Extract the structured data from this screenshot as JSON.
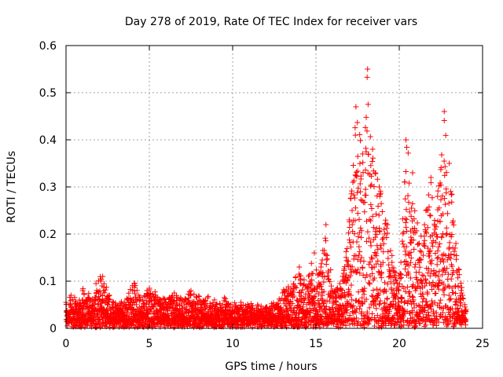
{
  "chart_data": {
    "type": "scatter",
    "title": "Day 278 of 2019, Rate Of TEC Index for receiver vars",
    "xlabel": "GPS time / hours",
    "ylabel": "ROTI / TECUs",
    "xlim": [
      0,
      25
    ],
    "ylim": [
      0,
      0.6
    ],
    "xticks": [
      0,
      5,
      10,
      15,
      20,
      25
    ],
    "yticks": [
      0,
      0.1,
      0.2,
      0.3,
      0.4,
      0.5,
      0.6
    ],
    "xtick_labels": [
      "0",
      "5",
      "10",
      "15",
      "20",
      "25"
    ],
    "ytick_labels": [
      "0",
      "0.1",
      "0.2",
      "0.3",
      "0.4",
      "0.5",
      "0.6"
    ],
    "grid": true,
    "marker": "+",
    "color": "#ff0000",
    "series": [
      {
        "name": "ROTI",
        "envelope": [
          {
            "x": 0.0,
            "y": 0.055
          },
          {
            "x": 0.3,
            "y": 0.07
          },
          {
            "x": 0.8,
            "y": 0.06
          },
          {
            "x": 1.0,
            "y": 0.08
          },
          {
            "x": 1.5,
            "y": 0.06
          },
          {
            "x": 1.8,
            "y": 0.095
          },
          {
            "x": 2.2,
            "y": 0.11
          },
          {
            "x": 2.6,
            "y": 0.07
          },
          {
            "x": 3.0,
            "y": 0.05
          },
          {
            "x": 3.5,
            "y": 0.055
          },
          {
            "x": 4.1,
            "y": 0.095
          },
          {
            "x": 4.6,
            "y": 0.06
          },
          {
            "x": 5.0,
            "y": 0.085
          },
          {
            "x": 5.5,
            "y": 0.065
          },
          {
            "x": 6.0,
            "y": 0.055
          },
          {
            "x": 6.5,
            "y": 0.075
          },
          {
            "x": 7.0,
            "y": 0.06
          },
          {
            "x": 7.5,
            "y": 0.08
          },
          {
            "x": 8.0,
            "y": 0.06
          },
          {
            "x": 8.5,
            "y": 0.065
          },
          {
            "x": 9.0,
            "y": 0.05
          },
          {
            "x": 9.5,
            "y": 0.065
          },
          {
            "x": 10.0,
            "y": 0.045
          },
          {
            "x": 10.5,
            "y": 0.055
          },
          {
            "x": 11.0,
            "y": 0.045
          },
          {
            "x": 11.5,
            "y": 0.05
          },
          {
            "x": 12.0,
            "y": 0.045
          },
          {
            "x": 12.6,
            "y": 0.05
          },
          {
            "x": 13.0,
            "y": 0.075
          },
          {
            "x": 13.5,
            "y": 0.085
          },
          {
            "x": 14.0,
            "y": 0.13
          },
          {
            "x": 14.4,
            "y": 0.09
          },
          {
            "x": 14.9,
            "y": 0.16
          },
          {
            "x": 15.3,
            "y": 0.13
          },
          {
            "x": 15.6,
            "y": 0.22
          },
          {
            "x": 16.0,
            "y": 0.08
          },
          {
            "x": 16.6,
            "y": 0.11
          },
          {
            "x": 17.0,
            "y": 0.23
          },
          {
            "x": 17.4,
            "y": 0.47
          },
          {
            "x": 17.8,
            "y": 0.37
          },
          {
            "x": 18.1,
            "y": 0.55
          },
          {
            "x": 18.4,
            "y": 0.38
          },
          {
            "x": 18.8,
            "y": 0.3
          },
          {
            "x": 19.3,
            "y": 0.22
          },
          {
            "x": 19.7,
            "y": 0.12
          },
          {
            "x": 20.1,
            "y": 0.14
          },
          {
            "x": 20.4,
            "y": 0.4
          },
          {
            "x": 20.8,
            "y": 0.33
          },
          {
            "x": 21.2,
            "y": 0.18
          },
          {
            "x": 21.6,
            "y": 0.25
          },
          {
            "x": 21.9,
            "y": 0.32
          },
          {
            "x": 22.3,
            "y": 0.28
          },
          {
            "x": 22.7,
            "y": 0.46
          },
          {
            "x": 23.0,
            "y": 0.35
          },
          {
            "x": 23.4,
            "y": 0.18
          },
          {
            "x": 23.8,
            "y": 0.07
          },
          {
            "x": 24.0,
            "y": 0.04
          }
        ],
        "baseline": 0.02,
        "points_count": 3500
      }
    ]
  }
}
